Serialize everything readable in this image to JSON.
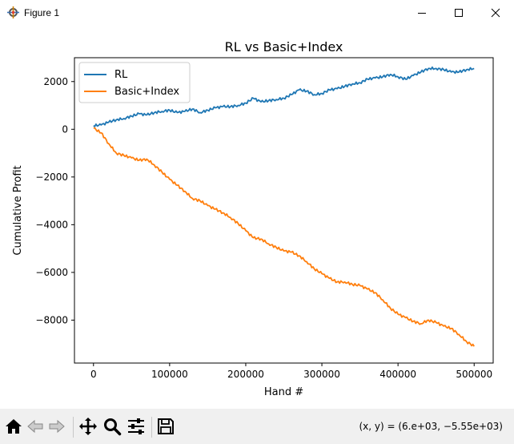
{
  "window": {
    "title": "Figure 1",
    "icons": [
      "figure-app-icon",
      "minimize-icon",
      "maximize-icon",
      "close-icon"
    ]
  },
  "toolbar": {
    "items": [
      "home-icon",
      "back-icon",
      "forward-icon",
      "pan-icon",
      "zoom-icon",
      "configure-subplots-icon",
      "save-icon"
    ],
    "coord_readout": "(x, y) = (6.e+03, −5.55e+03)"
  },
  "colors": {
    "rl": "#1f77b4",
    "basic_index": "#ff7f0e",
    "toolbar_bg": "#f0f0f0"
  },
  "chart_data": {
    "type": "line",
    "title": "RL vs Basic+Index",
    "xlabel": "Hand #",
    "ylabel": "Cumulative Profit",
    "xlim": [
      -25000,
      525000
    ],
    "ylim": [
      -9800,
      3000
    ],
    "xticks": [
      0,
      100000,
      200000,
      300000,
      400000,
      500000
    ],
    "xtick_labels": [
      "0",
      "100000",
      "200000",
      "300000",
      "400000",
      "500000"
    ],
    "yticks": [
      2000,
      0,
      -2000,
      -4000,
      -6000,
      -8000
    ],
    "ytick_labels": [
      "2000",
      "0",
      "−2000",
      "−4000",
      "−6000",
      "−8000"
    ],
    "grid": false,
    "legend": "upper-left",
    "series": [
      {
        "name": "RL",
        "x": [
          0,
          10000,
          20000,
          30000,
          40000,
          50000,
          60000,
          70000,
          80000,
          90000,
          100000,
          110000,
          120000,
          130000,
          140000,
          150000,
          160000,
          170000,
          180000,
          190000,
          200000,
          210000,
          220000,
          230000,
          240000,
          250000,
          260000,
          270000,
          280000,
          290000,
          300000,
          310000,
          320000,
          330000,
          340000,
          350000,
          360000,
          370000,
          380000,
          390000,
          400000,
          410000,
          420000,
          430000,
          440000,
          450000,
          460000,
          470000,
          480000,
          490000,
          500000
        ],
        "y": [
          150,
          180,
          300,
          400,
          450,
          550,
          650,
          600,
          700,
          750,
          800,
          700,
          750,
          850,
          700,
          800,
          900,
          950,
          950,
          1000,
          1100,
          1300,
          1150,
          1200,
          1250,
          1300,
          1450,
          1650,
          1600,
          1450,
          1500,
          1650,
          1700,
          1800,
          1900,
          1950,
          2100,
          2150,
          2200,
          2300,
          2200,
          2100,
          2250,
          2400,
          2550,
          2550,
          2500,
          2400,
          2400,
          2500,
          2550
        ]
      },
      {
        "name": "Basic+Index",
        "x": [
          0,
          10000,
          20000,
          30000,
          40000,
          50000,
          60000,
          70000,
          80000,
          90000,
          100000,
          110000,
          120000,
          130000,
          140000,
          150000,
          160000,
          170000,
          180000,
          190000,
          200000,
          210000,
          220000,
          230000,
          240000,
          250000,
          260000,
          270000,
          280000,
          290000,
          300000,
          310000,
          320000,
          330000,
          340000,
          350000,
          360000,
          370000,
          380000,
          390000,
          400000,
          410000,
          420000,
          430000,
          440000,
          450000,
          460000,
          470000,
          480000,
          490000,
          500000
        ],
        "y": [
          50,
          -150,
          -600,
          -1000,
          -1100,
          -1200,
          -1300,
          -1250,
          -1500,
          -1800,
          -2100,
          -2350,
          -2600,
          -2900,
          -3000,
          -3200,
          -3350,
          -3500,
          -3700,
          -3950,
          -4250,
          -4550,
          -4600,
          -4800,
          -4950,
          -5100,
          -5150,
          -5300,
          -5550,
          -5850,
          -6050,
          -6250,
          -6400,
          -6400,
          -6500,
          -6550,
          -6700,
          -6850,
          -7150,
          -7500,
          -7750,
          -7900,
          -8050,
          -8150,
          -8000,
          -8100,
          -8250,
          -8350,
          -8600,
          -8900,
          -9100
        ]
      }
    ]
  }
}
